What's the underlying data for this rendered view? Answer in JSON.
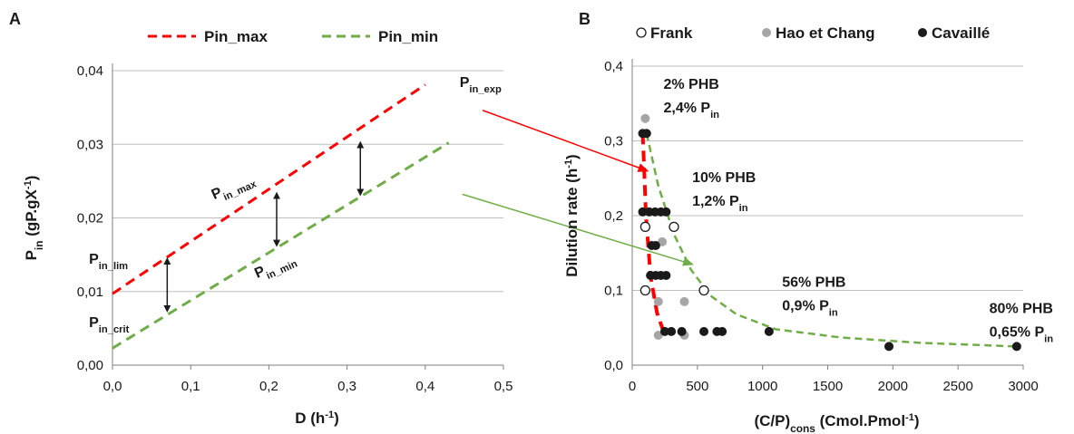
{
  "chart_data": [
    {
      "panel": "A",
      "type": "line",
      "xlabel_main": "D",
      "xlabel_unit": "(h",
      "xlabel_sup": "-1",
      "xlabel_end": ")",
      "ylabel_main": "P",
      "ylabel_sub": "in",
      "ylabel_unit": " (gP.gX",
      "ylabel_sup": "-1",
      "ylabel_end": ")",
      "xlim": [
        0,
        0.5
      ],
      "ylim": [
        0,
        0.04
      ],
      "x_ticks": [
        "0,0",
        "0,1",
        "0,2",
        "0,3",
        "0,4",
        "0,5"
      ],
      "x_tick_values": [
        0,
        0.1,
        0.2,
        0.3,
        0.4,
        0.5
      ],
      "y_ticks": [
        "0,00",
        "0,01",
        "0,02",
        "0,03",
        "0,04"
      ],
      "y_tick_values": [
        0,
        0.01,
        0.02,
        0.03,
        0.04
      ],
      "grid": "horizontal",
      "legend_position": "top",
      "series": [
        {
          "name": "Pin_max",
          "color": "#ff0000",
          "style": "dashed",
          "x": [
            0,
            0.4
          ],
          "y": [
            0.0097,
            0.0381
          ]
        },
        {
          "name": "Pin_min",
          "color": "#70ad47",
          "style": "dashed",
          "x": [
            0,
            0.43
          ],
          "y": [
            0.0023,
            0.0302
          ]
        }
      ],
      "double_arrows": [
        {
          "x": 0.07,
          "y_top": 0.0144,
          "y_bottom": 0.0074
        },
        {
          "x": 0.21,
          "y_top": 0.0233,
          "y_bottom": 0.0163
        },
        {
          "x": 0.317,
          "y_top": 0.0302,
          "y_bottom": 0.0232
        }
      ],
      "annotations": [
        {
          "main": "P",
          "sub": "in_exp",
          "x": 0.444,
          "y": 0.0378,
          "color": "#1a1a1a"
        },
        {
          "main": "P",
          "sub": "in_lim",
          "x": -0.03,
          "y": 0.0138,
          "color": "#1a1a1a"
        },
        {
          "main": "P",
          "sub": "in_crit",
          "x": -0.03,
          "y": 0.0052,
          "color": "#1a1a1a"
        },
        {
          "main": "P",
          "sub": "in_max",
          "x": 0.13,
          "y": 0.0225,
          "color": "#ff0000",
          "rotate": -24
        },
        {
          "main": "P",
          "sub": "in_min",
          "x": 0.185,
          "y": 0.0118,
          "color": "#70ad47",
          "rotate": -24
        }
      ]
    },
    {
      "panel": "B",
      "type": "scatter",
      "xlabel_main": "(C/P)",
      "xlabel_sub": "cons",
      "xlabel_unit": " (Cmol.Pmol",
      "xlabel_sup": "-1",
      "xlabel_end": ")",
      "ylabel_main": "Dilution rate (h",
      "ylabel_sup": "-1",
      "ylabel_end": ")",
      "xlim": [
        0,
        3000
      ],
      "ylim": [
        0,
        0.4
      ],
      "x_ticks": [
        "0",
        "500",
        "1000",
        "1500",
        "2000",
        "2500",
        "3000"
      ],
      "x_tick_values": [
        0,
        500,
        1000,
        1500,
        2000,
        2500,
        3000
      ],
      "y_ticks": [
        "0,0",
        "0,1",
        "0,2",
        "0,3",
        "0,4"
      ],
      "y_tick_values": [
        0,
        0.1,
        0.2,
        0.3,
        0.4
      ],
      "grid": "horizontal",
      "legend_position": "top",
      "series": [
        {
          "name": "Frank",
          "marker": "open-circle",
          "color": "#1a1a1a",
          "points": [
            [
              100,
              0.185
            ],
            [
              320,
              0.185
            ],
            [
              100,
              0.1
            ],
            [
              550,
              0.1
            ]
          ]
        },
        {
          "name": "Hao et Chang",
          "marker": "filled-circle",
          "color": "#a6a6a6",
          "points": [
            [
              100,
              0.33
            ],
            [
              230,
              0.165
            ],
            [
              200,
              0.085
            ],
            [
              400,
              0.085
            ],
            [
              200,
              0.04
            ],
            [
              400,
              0.04
            ]
          ]
        },
        {
          "name": "Cavaillé",
          "marker": "filled-circle",
          "color": "#1a1a1a",
          "points": [
            [
              80,
              0.31
            ],
            [
              110,
              0.31
            ],
            [
              80,
              0.205
            ],
            [
              130,
              0.205
            ],
            [
              175,
              0.205
            ],
            [
              220,
              0.205
            ],
            [
              260,
              0.205
            ],
            [
              150,
              0.16
            ],
            [
              180,
              0.16
            ],
            [
              140,
              0.12
            ],
            [
              180,
              0.12
            ],
            [
              220,
              0.12
            ],
            [
              260,
              0.12
            ],
            [
              250,
              0.045
            ],
            [
              300,
              0.045
            ],
            [
              380,
              0.045
            ],
            [
              550,
              0.045
            ],
            [
              650,
              0.045
            ],
            [
              690,
              0.045
            ],
            [
              1050,
              0.045
            ],
            [
              1970,
              0.025
            ],
            [
              2950,
              0.025
            ]
          ]
        }
      ],
      "curves": [
        {
          "color": "#ff0000",
          "style": "dashed",
          "x": [
            80,
            90,
            105,
            140,
            190,
            240
          ],
          "y": [
            0.31,
            0.27,
            0.2,
            0.12,
            0.07,
            0.045
          ]
        },
        {
          "color": "#70ad47",
          "style": "dashed",
          "x": [
            110,
            200,
            320,
            450,
            600,
            800,
            1100,
            1600,
            2200,
            2950
          ],
          "y": [
            0.31,
            0.24,
            0.175,
            0.128,
            0.093,
            0.068,
            0.048,
            0.037,
            0.03,
            0.025
          ]
        }
      ],
      "annotations": [
        {
          "line1": "2% PHB",
          "line2_main": "2,4% P",
          "line2_sub": "in",
          "x": 240,
          "y": 0.37
        },
        {
          "line1": "10% PHB",
          "line2_main": "1,2% P",
          "line2_sub": "in",
          "x": 460,
          "y": 0.245
        },
        {
          "line1": "56% PHB",
          "line2_main": "0,9% P",
          "line2_sub": "in",
          "x": 1150,
          "y": 0.105
        },
        {
          "line1": "80% PHB",
          "line2_main": "0,65% P",
          "line2_sub": "in",
          "x": 2740,
          "y": 0.07
        }
      ]
    }
  ],
  "cross_arrows": [
    {
      "color": "#ff0000",
      "from_panel": "A",
      "from": [
        0.398,
        0.0356
      ],
      "to_panel": "B",
      "to": [
        115,
        0.26
      ]
    },
    {
      "color": "#70ad47",
      "from_panel": "A",
      "from": [
        0.372,
        0.0242
      ],
      "to_panel": "B",
      "to": [
        460,
        0.135
      ]
    }
  ],
  "panel_labels": [
    "A",
    "B"
  ]
}
